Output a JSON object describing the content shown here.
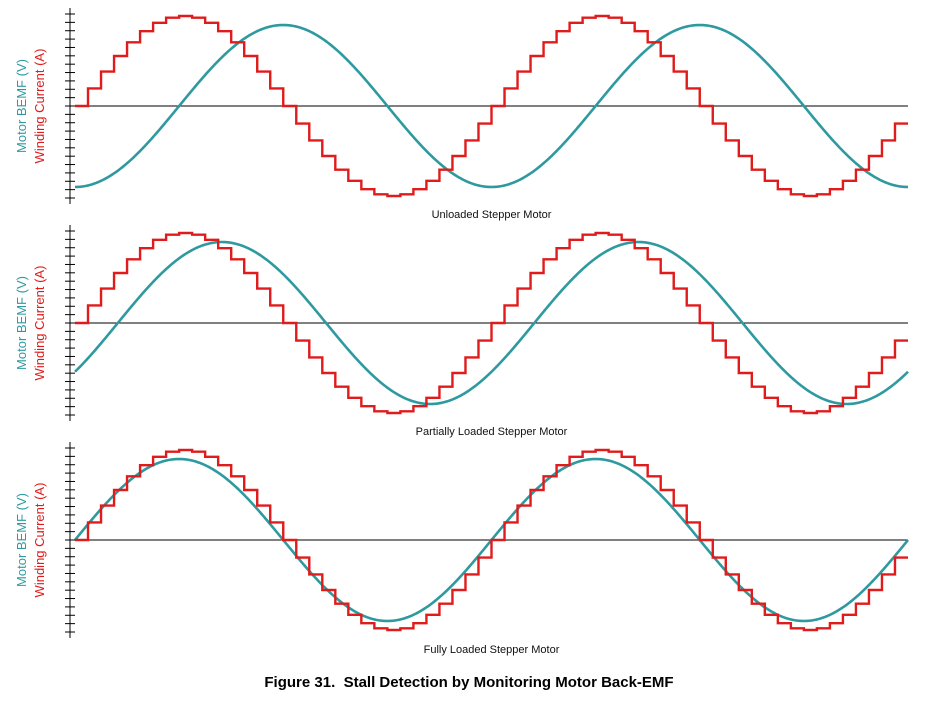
{
  "figure": {
    "caption": "Figure 31.  Stall Detection by Monitoring Motor Back-EMF"
  },
  "colors": {
    "bemf": "#2e9aa0",
    "current": "#e01b1b",
    "axis": "#000000"
  },
  "chart_data": [
    {
      "type": "line",
      "subtitle": "Unloaded Stepper Motor",
      "ylabel_bemf": "Motor BEMF (V)",
      "ylabel_current": "Winding Current (A)",
      "xlim": [
        0,
        2
      ],
      "ylim": [
        -1,
        1
      ],
      "series": [
        {
          "name": "Winding Current (A)",
          "shape": "stepped-sine",
          "steps_per_half_cycle": 16,
          "cycles": 2,
          "amplitude": 1.0,
          "phase_deg": 0
        },
        {
          "name": "Motor BEMF (V)",
          "shape": "sine",
          "cycles": 2,
          "amplitude": 0.9,
          "phase_deg": -90
        }
      ]
    },
    {
      "type": "line",
      "subtitle": "Partially Loaded Stepper Motor",
      "ylabel_bemf": "Motor BEMF (V)",
      "ylabel_current": "Winding Current (A)",
      "xlim": [
        0,
        2
      ],
      "ylim": [
        -1,
        1
      ],
      "series": [
        {
          "name": "Winding Current (A)",
          "shape": "stepped-sine",
          "steps_per_half_cycle": 16,
          "cycles": 2,
          "amplitude": 1.0,
          "phase_deg": 0
        },
        {
          "name": "Motor BEMF (V)",
          "shape": "sine",
          "cycles": 2,
          "amplitude": 0.9,
          "phase_deg": -37
        }
      ]
    },
    {
      "type": "line",
      "subtitle": "Fully Loaded Stepper Motor",
      "ylabel_bemf": "Motor BEMF (V)",
      "ylabel_current": "Winding Current (A)",
      "xlim": [
        0,
        2
      ],
      "ylim": [
        -1,
        1
      ],
      "series": [
        {
          "name": "Winding Current (A)",
          "shape": "stepped-sine",
          "steps_per_half_cycle": 16,
          "cycles": 2,
          "amplitude": 1.0,
          "phase_deg": 0
        },
        {
          "name": "Motor BEMF (V)",
          "shape": "sine",
          "cycles": 2,
          "amplitude": 0.9,
          "phase_deg": 0
        }
      ]
    }
  ]
}
